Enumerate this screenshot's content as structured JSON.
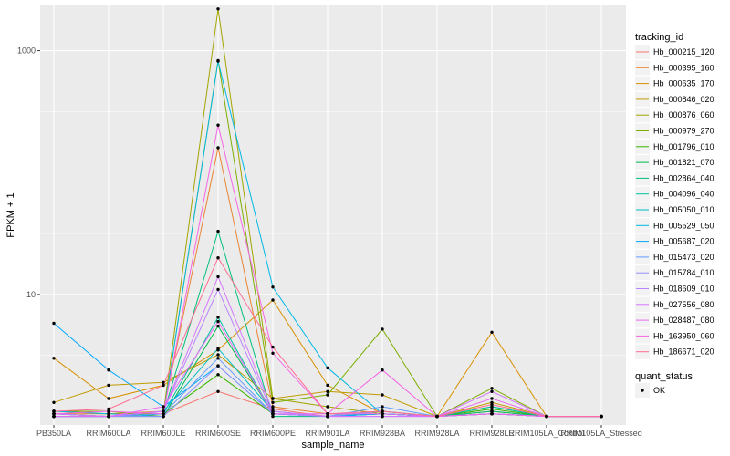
{
  "chart_data": {
    "type": "line",
    "xlabel": "sample_name",
    "ylabel": "FPKM + 1",
    "y_scale": "log10",
    "ylim": [
      0.85,
      2350
    ],
    "y_ticks": [
      {
        "value": 10,
        "label": "10"
      },
      {
        "value": 1000,
        "label": "1000"
      }
    ],
    "categories": [
      "PB350LA",
      "RRIM600LA",
      "RRIM600LE",
      "RRIM600SE",
      "RRIM600PE",
      "RRIM901LA",
      "RRIM928BA",
      "RRIM928LA",
      "RRIM928LE",
      "RRIM105LA_Control",
      "RRIM105LA_Stressed"
    ],
    "legend_title": "tracking_id",
    "point_legend_title": "quant_status",
    "point_legend_label": "OK",
    "panel_background": "#ebebeb",
    "grid_color": "#ffffff",
    "series": [
      {
        "name": "Hb_000215_120",
        "color": "#F8766D",
        "values": [
          1.05,
          1.0,
          1.05,
          1.6,
          1.15,
          1.0,
          1.1,
          1.0,
          1.05,
          1.0,
          1.0
        ]
      },
      {
        "name": "Hb_000395_160",
        "color": "#EA8331",
        "values": [
          1.05,
          1.05,
          1.1,
          160,
          1.2,
          1.05,
          1.05,
          1.0,
          1.1,
          1.0,
          1.0
        ]
      },
      {
        "name": "Hb_000635_170",
        "color": "#D89000",
        "values": [
          3.0,
          1.4,
          1.8,
          3.5,
          9.0,
          1.8,
          1.05,
          1.0,
          4.9,
          1.0,
          1.0
        ]
      },
      {
        "name": "Hb_000846_020",
        "color": "#C09B00",
        "values": [
          1.3,
          1.8,
          1.9,
          3.2,
          1.4,
          1.6,
          1.5,
          1.0,
          1.3,
          1.0,
          1.0
        ]
      },
      {
        "name": "Hb_000876_060",
        "color": "#A3A500",
        "values": [
          1.1,
          1.05,
          1.05,
          2200,
          1.4,
          1.2,
          1.05,
          1.0,
          1.1,
          1.0,
          1.0
        ]
      },
      {
        "name": "Hb_000979_270",
        "color": "#7CAE00",
        "values": [
          1.1,
          1.1,
          1.0,
          830,
          1.3,
          1.5,
          5.2,
          1.0,
          1.7,
          1.0,
          1.0
        ]
      },
      {
        "name": "Hb_001796_010",
        "color": "#39B600",
        "values": [
          1.05,
          1.0,
          1.05,
          2.2,
          1.05,
          1.0,
          1.1,
          1.0,
          1.15,
          1.0,
          1.0
        ]
      },
      {
        "name": "Hb_001821_070",
        "color": "#00BB4E",
        "values": [
          1.0,
          1.0,
          1.0,
          5.5,
          1.05,
          1.0,
          1.05,
          1.0,
          1.2,
          1.0,
          1.0
        ]
      },
      {
        "name": "Hb_002864_040",
        "color": "#00BF7D",
        "values": [
          1.0,
          1.0,
          1.05,
          33,
          1.0,
          1.0,
          1.05,
          1.0,
          1.1,
          1.0,
          1.0
        ]
      },
      {
        "name": "Hb_004096_040",
        "color": "#00C1A3",
        "values": [
          1.0,
          1.0,
          1.05,
          6.5,
          1.05,
          1.0,
          1.05,
          1.0,
          1.2,
          1.0,
          1.0
        ]
      },
      {
        "name": "Hb_005050_010",
        "color": "#00BFC4",
        "values": [
          1.05,
          1.0,
          1.1,
          3.6,
          1.1,
          1.0,
          1.05,
          1.0,
          1.05,
          1.0,
          1.0
        ]
      },
      {
        "name": "Hb_005529_050",
        "color": "#00B8E5",
        "values": [
          1.1,
          1.05,
          1.0,
          820,
          11.5,
          2.5,
          1.05,
          1.0,
          1.05,
          1.0,
          1.0
        ]
      },
      {
        "name": "Hb_005687_020",
        "color": "#00A9FF",
        "values": [
          5.8,
          2.4,
          1.2,
          2.6,
          1.05,
          1.0,
          1.05,
          1.0,
          1.05,
          1.0,
          1.0
        ]
      },
      {
        "name": "Hb_015473_020",
        "color": "#619CFF",
        "values": [
          1.0,
          1.0,
          1.05,
          3.0,
          1.05,
          1.0,
          1.2,
          1.0,
          1.05,
          1.0,
          1.0
        ]
      },
      {
        "name": "Hb_015784_010",
        "color": "#9590FF",
        "values": [
          1.05,
          1.0,
          1.0,
          2.6,
          1.05,
          1.0,
          1.1,
          1.0,
          1.05,
          1.0,
          1.0
        ]
      },
      {
        "name": "Hb_018609_010",
        "color": "#B983FF",
        "values": [
          1.0,
          1.0,
          1.1,
          11,
          1.05,
          1.0,
          1.0,
          1.0,
          1.05,
          1.0,
          1.0
        ]
      },
      {
        "name": "Hb_027556_080",
        "color": "#D376FF",
        "values": [
          1.05,
          1.0,
          1.1,
          14,
          1.1,
          1.0,
          1.0,
          1.0,
          1.6,
          1.0,
          1.0
        ]
      },
      {
        "name": "Hb_028487_080",
        "color": "#E76BF3",
        "values": [
          1.0,
          1.0,
          1.2,
          6.0,
          1.05,
          1.05,
          1.05,
          1.0,
          1.4,
          1.0,
          1.0
        ]
      },
      {
        "name": "Hb_163950_060",
        "color": "#F564E3",
        "values": [
          1.05,
          1.1,
          1.05,
          245,
          3.3,
          1.05,
          2.4,
          1.0,
          1.05,
          1.0,
          1.0
        ]
      },
      {
        "name": "Hb_186671_020",
        "color": "#FF6C91",
        "values": [
          1.1,
          1.15,
          1.8,
          20,
          3.7,
          1.05,
          1.1,
          1.0,
          1.25,
          1.0,
          1.0
        ]
      }
    ]
  }
}
